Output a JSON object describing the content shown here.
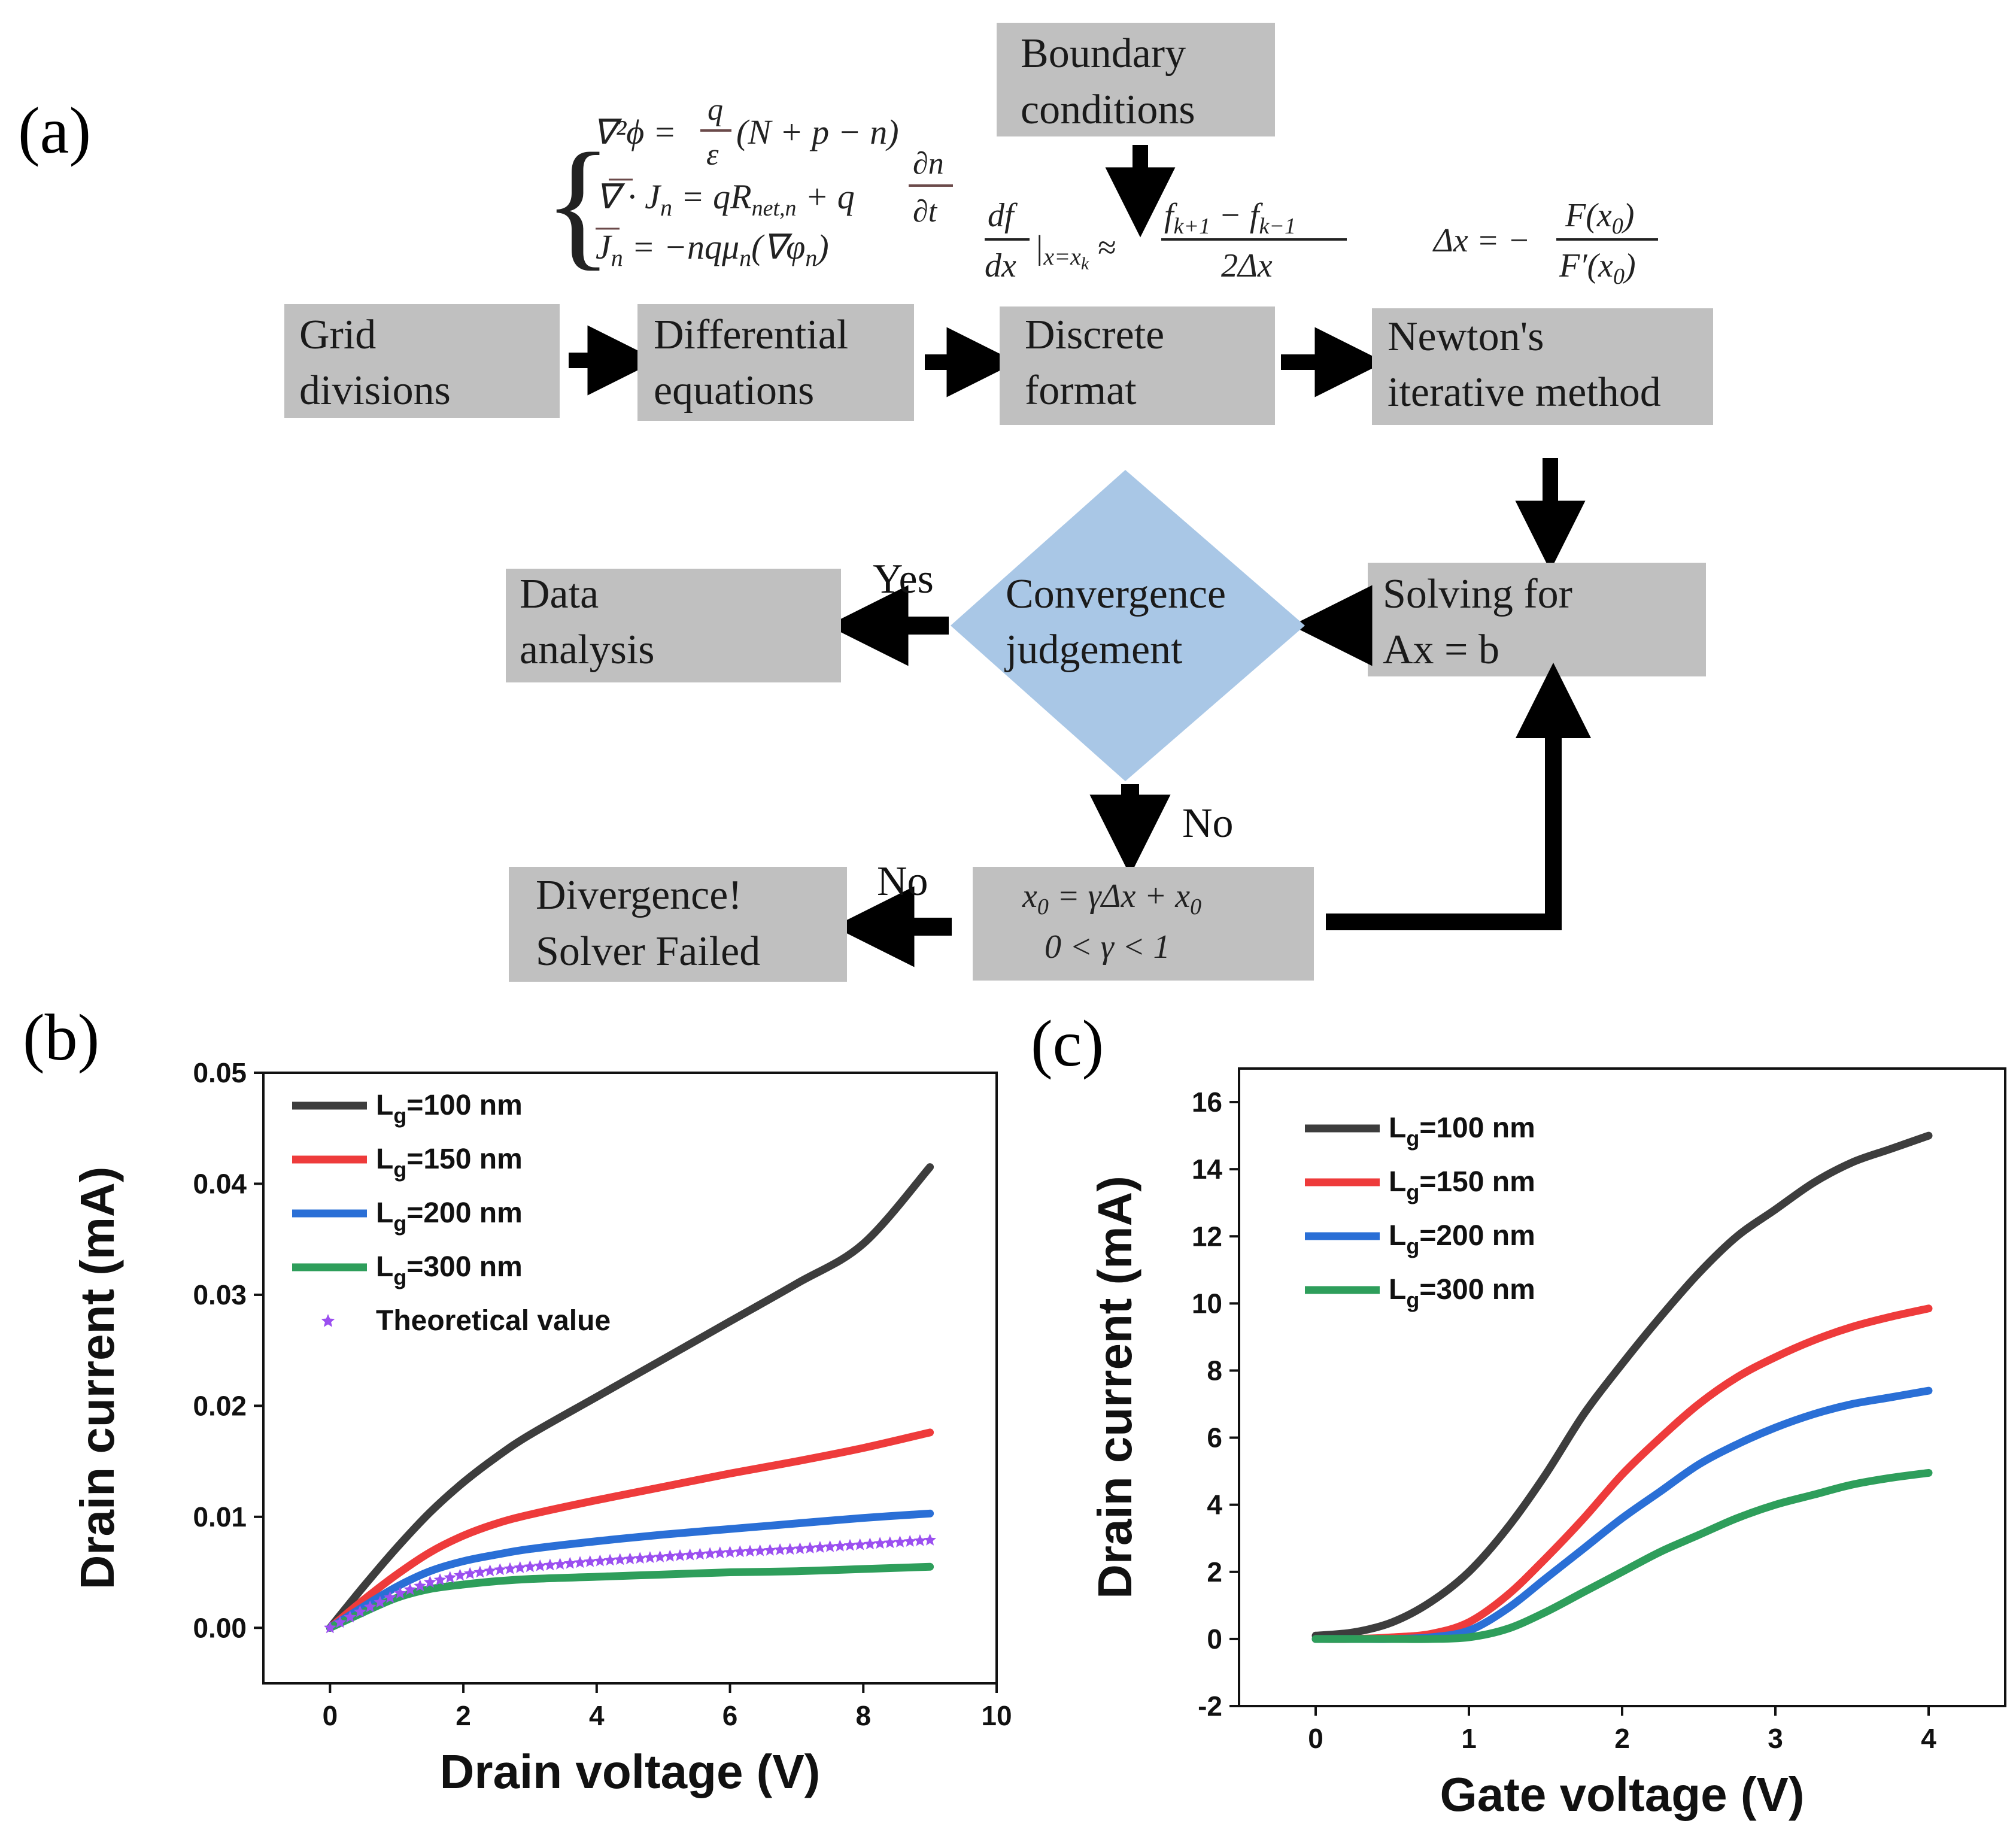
{
  "panels": {
    "a": "(a)",
    "b": "(b)",
    "c": "(c)"
  },
  "flowchart": {
    "boxes": {
      "boundary": [
        "Boundary",
        "conditions"
      ],
      "grid": [
        "Grid",
        "divisions"
      ],
      "differential": [
        "Differential",
        "equations"
      ],
      "discrete": [
        "Discrete",
        "format"
      ],
      "newton": [
        "Newton's",
        "iterative method"
      ],
      "solving": [
        "Solving  for",
        "Ax = b"
      ],
      "convergence": [
        "Convergence",
        "judgement"
      ],
      "data": [
        "Data",
        "analysis"
      ],
      "divergence": [
        "Divergence!",
        "Solver Failed"
      ],
      "update": [
        "x₀ = γΔx + x₀",
        "0 < γ < 1"
      ]
    },
    "labels": {
      "yes": "Yes",
      "no_down": "No",
      "no_left": "No"
    },
    "equations": {
      "poisson": "∇²ϕ = (q/ε)(N + p − n)",
      "continuity": "∇·Jₙ = qRₙₑₜ,ₙ + q ∂n/∂t",
      "current": "Jₙ = −nqμₙ(∇φₙ)",
      "discrete": "df/dx|x=xₖ ≈ (fₖ₊₁ − fₖ₋₁)/(2Δx)",
      "newton": "Δx = −F(x₀)/F′(x₀)"
    },
    "colors": {
      "box": "#c0c0c0",
      "diamond": "#a9c7e6",
      "arrow": "#000000"
    }
  },
  "chart_data": [
    {
      "type": "line",
      "xlabel": "Drain voltage (V)",
      "ylabel": "Drain current (mA)",
      "xlim": [
        -1,
        10
      ],
      "ylim": [
        -0.005,
        0.05
      ],
      "xticks": [
        "0",
        "2",
        "4",
        "6",
        "8",
        "10"
      ],
      "yticks": [
        "0.00",
        "0.01",
        "0.02",
        "0.03",
        "0.04",
        "0.05"
      ],
      "legend_position": "top-left",
      "x": [
        0,
        0.5,
        1,
        1.5,
        2,
        2.5,
        3,
        4,
        5,
        6,
        7,
        8,
        9
      ],
      "series": [
        {
          "name": "L",
          "sub": "g",
          "suffix": "=100 nm",
          "color": "#3d3d3d",
          "marker": "line",
          "values": [
            0,
            0.0037,
            0.0072,
            0.0104,
            0.0131,
            0.0154,
            0.0174,
            0.0208,
            0.0242,
            0.0276,
            0.031,
            0.0346,
            0.0415
          ]
        },
        {
          "name": "L",
          "sub": "g",
          "suffix": "=150 nm",
          "color": "#ee3b3b",
          "marker": "line",
          "values": [
            0,
            0.0025,
            0.0048,
            0.0068,
            0.0083,
            0.0094,
            0.0102,
            0.0115,
            0.0127,
            0.0139,
            0.015,
            0.0162,
            0.0176
          ]
        },
        {
          "name": "L",
          "sub": "g",
          "suffix": "=200 nm",
          "color": "#2a6fd6",
          "marker": "line",
          "values": [
            0,
            0.0019,
            0.0037,
            0.0051,
            0.006,
            0.0066,
            0.0071,
            0.0078,
            0.0084,
            0.0089,
            0.0094,
            0.0099,
            0.0103
          ]
        },
        {
          "name": "L",
          "sub": "g",
          "suffix": "=300 nm",
          "color": "#2e9e5b",
          "marker": "line",
          "values": [
            0,
            0.0014,
            0.0027,
            0.0035,
            0.0039,
            0.0042,
            0.0044,
            0.0046,
            0.0048,
            0.005,
            0.0051,
            0.0053,
            0.0055
          ]
        },
        {
          "name": "Theoretical value",
          "sub": "",
          "suffix": "",
          "color": "#9b4ff0",
          "marker": "star",
          "values": [
            0,
            0.0016,
            0.003,
            0.0041,
            0.0048,
            0.0052,
            0.0055,
            0.006,
            0.0064,
            0.0068,
            0.0071,
            0.0075,
            0.0079
          ]
        }
      ]
    },
    {
      "type": "line",
      "xlabel": "Gate voltage (V)",
      "ylabel": "Drain current (mA)",
      "xlim": [
        -0.5,
        4.5
      ],
      "ylim": [
        -2,
        17
      ],
      "xticks": [
        "0",
        "1",
        "2",
        "3",
        "4"
      ],
      "yticks": [
        "-2",
        "0",
        "2",
        "4",
        "6",
        "8",
        "10",
        "12",
        "14",
        "16"
      ],
      "legend_position": "top-left",
      "x": [
        0,
        0.25,
        0.5,
        0.75,
        1,
        1.25,
        1.5,
        1.75,
        2,
        2.25,
        2.5,
        2.75,
        3,
        3.25,
        3.5,
        3.75,
        4
      ],
      "series": [
        {
          "name": "L",
          "sub": "g",
          "suffix": "=100 nm",
          "color": "#3d3d3d",
          "marker": "line",
          "values": [
            0.1,
            0.2,
            0.5,
            1.1,
            2.0,
            3.3,
            4.9,
            6.7,
            8.2,
            9.6,
            10.9,
            12.0,
            12.8,
            13.6,
            14.2,
            14.6,
            15.0
          ]
        },
        {
          "name": "L",
          "sub": "g",
          "suffix": "=150 nm",
          "color": "#ee3b3b",
          "marker": "line",
          "values": [
            0.0,
            0.0,
            0.05,
            0.15,
            0.5,
            1.3,
            2.4,
            3.6,
            4.9,
            6.0,
            7.0,
            7.8,
            8.4,
            8.9,
            9.3,
            9.6,
            9.85
          ]
        },
        {
          "name": "L",
          "sub": "g",
          "suffix": "=200 nm",
          "color": "#2a6fd6",
          "marker": "line",
          "values": [
            0.0,
            0.0,
            0.0,
            0.05,
            0.25,
            0.9,
            1.8,
            2.7,
            3.6,
            4.4,
            5.2,
            5.8,
            6.3,
            6.7,
            7.0,
            7.2,
            7.4
          ]
        },
        {
          "name": "L",
          "sub": "g",
          "suffix": "=300 nm",
          "color": "#2e9e5b",
          "marker": "line",
          "values": [
            0.0,
            0.0,
            0.0,
            0.0,
            0.05,
            0.3,
            0.8,
            1.4,
            2.0,
            2.6,
            3.1,
            3.6,
            4.0,
            4.3,
            4.6,
            4.8,
            4.95
          ]
        }
      ]
    }
  ]
}
